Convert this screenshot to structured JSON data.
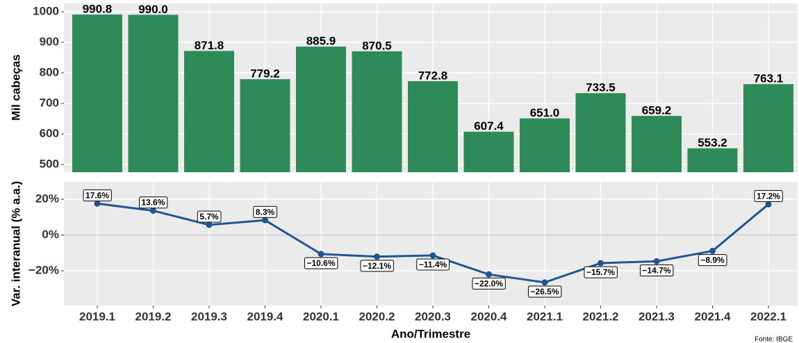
{
  "chart_data": [
    {
      "type": "bar",
      "ylabel": "Mil cabeças",
      "values": [
        990.8,
        990,
        871.8,
        779.2,
        885.9,
        870.5,
        772.8,
        607.4,
        651,
        733.5,
        659.2,
        553.2,
        763.1
      ],
      "value_labels": [
        "990.8",
        "990.0",
        "871.8",
        "779.2",
        "885.9",
        "870.5",
        "772.8",
        "607.4",
        "651.0",
        "733.5",
        "659.2",
        "553.2",
        "763.1"
      ],
      "color": "#2e8b57",
      "ylim": [
        475,
        1027
      ],
      "yticks": [
        500,
        600,
        700,
        800,
        900,
        1000
      ],
      "grid": true
    },
    {
      "type": "line",
      "ylabel": "Var. interanual (% a.a.)",
      "xlabel": "Ano/Trimestre",
      "categories": [
        "2019.1",
        "2019.2",
        "2019.3",
        "2019.4",
        "2020.1",
        "2020.2",
        "2020.3",
        "2020.4",
        "2021.1",
        "2021.2",
        "2021.3",
        "2021.4",
        "2022.1"
      ],
      "values": [
        17.6,
        13.6,
        5.7,
        8.3,
        -10.6,
        -12.1,
        -11.4,
        -22,
        -26.5,
        -15.7,
        -14.7,
        -8.9,
        17.2
      ],
      "value_labels": [
        "17.6%",
        "13.6%",
        "5.7%",
        "8.3%",
        "−10.6%",
        "−12.1%",
        "−11.4%",
        "−22.0%",
        "−26.5%",
        "−15.7%",
        "−14.7%",
        "−8.9%",
        "17.2%"
      ],
      "color": "#1f5591",
      "ylim": [
        -39.4,
        29.7
      ],
      "yticks": [
        {
          "value": -20,
          "label": "−20%"
        },
        {
          "value": 0,
          "label": "0%"
        },
        {
          "value": 20,
          "label": "20%"
        }
      ],
      "grid": true,
      "source": "Fonte: IBGE"
    }
  ]
}
